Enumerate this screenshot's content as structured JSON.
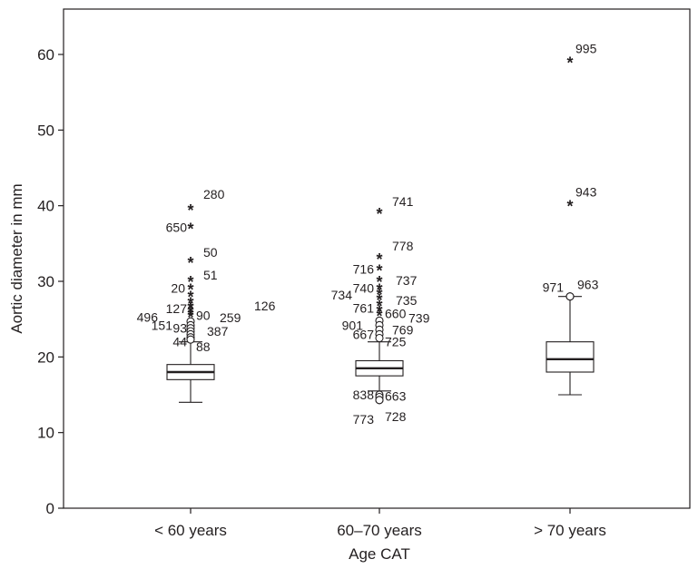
{
  "chart_data": {
    "type": "boxplot",
    "xlabel": "Age CAT",
    "ylabel": "Aortic diameter in mm",
    "ylim": [
      0,
      66
    ],
    "yticks": [
      0,
      10,
      20,
      30,
      40,
      50,
      60
    ],
    "categories": [
      "< 60 years",
      "60–70 years",
      "> 70 years"
    ],
    "boxes": [
      {
        "category": "< 60 years",
        "whisker_low": 14,
        "q1": 17,
        "median": 18,
        "q3": 19,
        "whisker_high": 22,
        "outliers": [
          {
            "value": 39.5,
            "marker": "star",
            "label": "280"
          },
          {
            "value": 37,
            "marker": "star",
            "label": "650"
          },
          {
            "value": 32.5,
            "marker": "star",
            "label": "50"
          },
          {
            "value": 30,
            "marker": "star",
            "label": "51"
          },
          {
            "value": 29,
            "marker": "star",
            "label": "20"
          },
          {
            "value": 28,
            "marker": "star",
            "label": ""
          },
          {
            "value": 27.2,
            "marker": "star",
            "label": ""
          },
          {
            "value": 26.5,
            "marker": "star",
            "label": "127"
          },
          {
            "value": 26,
            "marker": "star",
            "label": "496"
          },
          {
            "value": 25.6,
            "marker": "star",
            "label": "90"
          },
          {
            "value": 25.3,
            "marker": "star",
            "label": "259"
          },
          {
            "value": 26.5,
            "marker": "star",
            "label": "126"
          },
          {
            "value": 24.7,
            "marker": "circle",
            "label": ""
          },
          {
            "value": 24.2,
            "marker": "circle",
            "label": "151"
          },
          {
            "value": 23.8,
            "marker": "circle",
            "label": "93"
          },
          {
            "value": 23.4,
            "marker": "circle",
            "label": "387"
          },
          {
            "value": 23.0,
            "marker": "circle",
            "label": ""
          },
          {
            "value": 22.6,
            "marker": "circle",
            "label": "44"
          },
          {
            "value": 22.3,
            "marker": "circle",
            "label": "88"
          }
        ]
      },
      {
        "category": "60–70 years",
        "whisker_low": 15.5,
        "q1": 17.5,
        "median": 18.5,
        "q3": 19.5,
        "whisker_high": 22,
        "outliers": [
          {
            "value": 39,
            "marker": "star",
            "label": "741"
          },
          {
            "value": 33,
            "marker": "star",
            "label": "778"
          },
          {
            "value": 31.5,
            "marker": "star",
            "label": "716"
          },
          {
            "value": 30,
            "marker": "star",
            "label": "737"
          },
          {
            "value": 29,
            "marker": "star",
            "label": "740"
          },
          {
            "value": 28.3,
            "marker": "star",
            "label": "734"
          },
          {
            "value": 27.6,
            "marker": "star",
            "label": "735"
          },
          {
            "value": 26.8,
            "marker": "star",
            "label": "761"
          },
          {
            "value": 26.1,
            "marker": "star",
            "label": "660"
          },
          {
            "value": 25.5,
            "marker": "star",
            "label": "739"
          },
          {
            "value": 24.8,
            "marker": "circle",
            "label": "901"
          },
          {
            "value": 24.2,
            "marker": "circle",
            "label": "769"
          },
          {
            "value": 23.6,
            "marker": "circle",
            "label": "667"
          },
          {
            "value": 23.0,
            "marker": "circle",
            "label": "725"
          },
          {
            "value": 22.5,
            "marker": "circle",
            "label": ""
          },
          {
            "value": 15,
            "marker": "circle",
            "label": "838"
          },
          {
            "value": 14.7,
            "marker": "circle",
            "label": "663"
          },
          {
            "value": 14.3,
            "marker": "circle",
            "label": "773"
          },
          {
            "value": 14.3,
            "marker": "circle",
            "label": "728"
          }
        ]
      },
      {
        "category": "> 70 years",
        "whisker_low": 15,
        "q1": 18,
        "median": 19.7,
        "q3": 22,
        "whisker_high": 28,
        "outliers": [
          {
            "value": 59,
            "marker": "star",
            "label": "995"
          },
          {
            "value": 40,
            "marker": "star",
            "label": "943"
          },
          {
            "value": 28,
            "marker": "circle",
            "label": "971"
          },
          {
            "value": 28,
            "marker": "circle",
            "label": "963"
          }
        ]
      }
    ]
  }
}
